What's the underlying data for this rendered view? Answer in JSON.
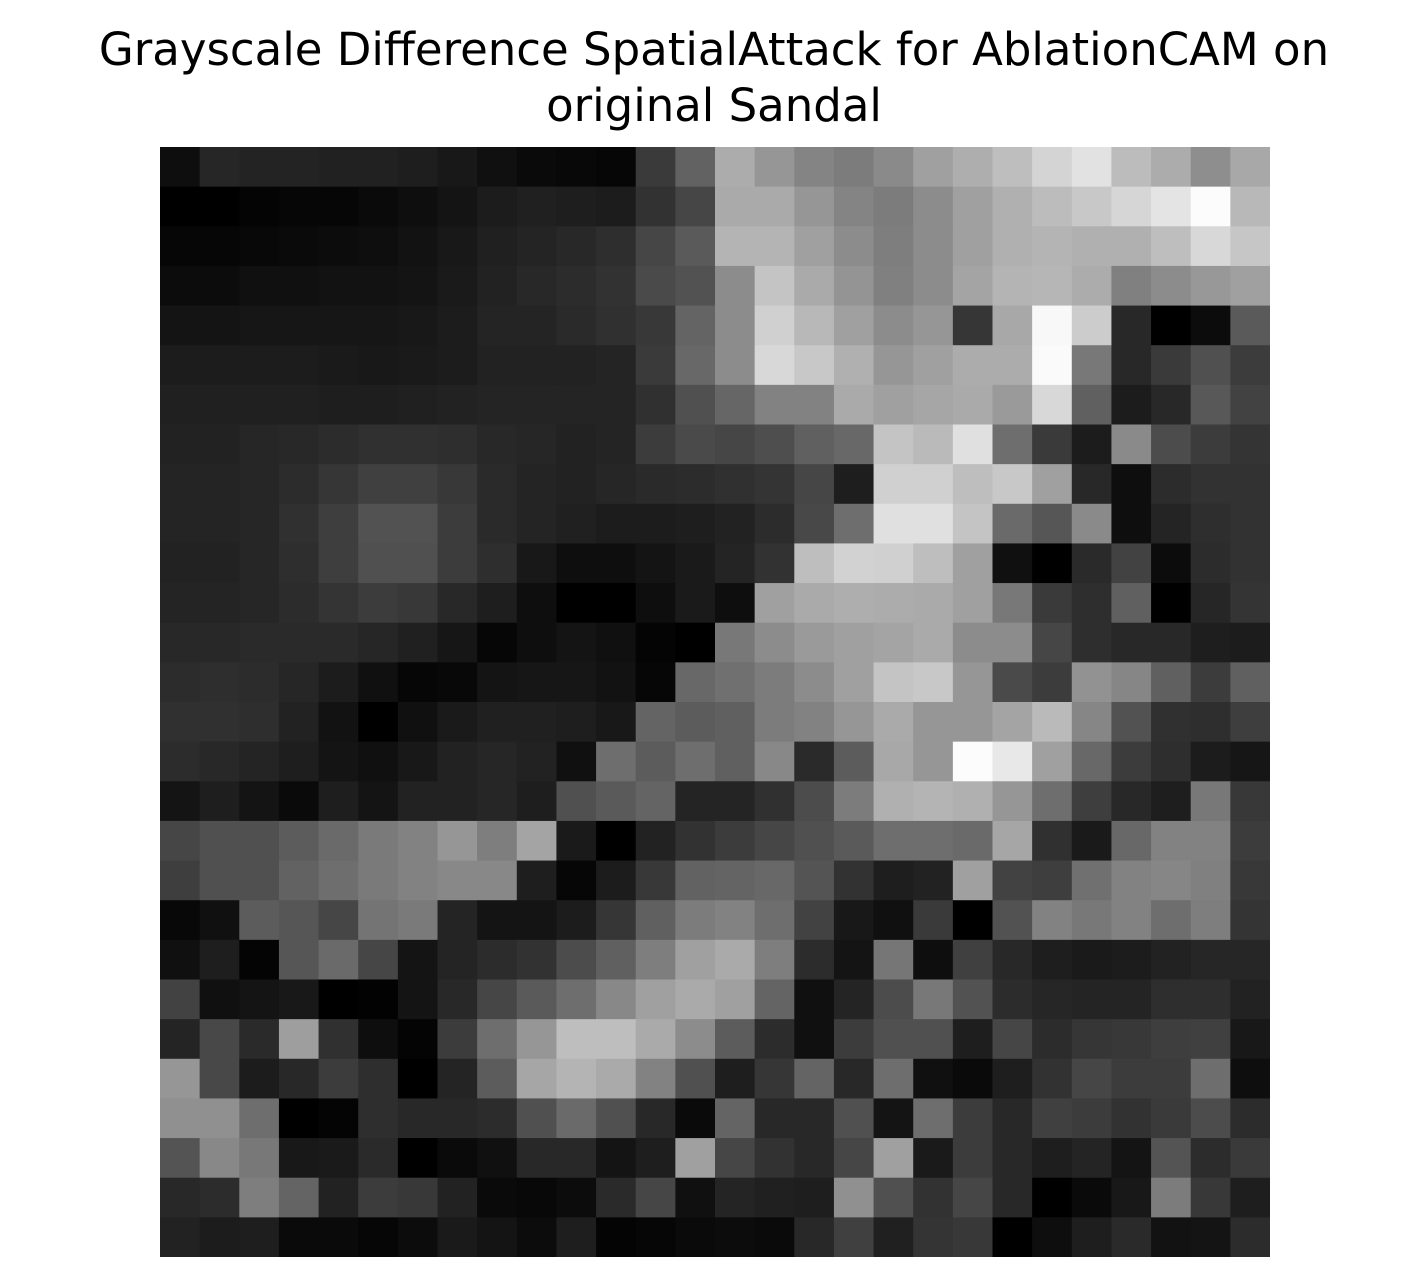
{
  "title_lines": [
    "Grayscale Difference SpatialAttack for AblationCAM on",
    "original Sandal"
  ],
  "chart_data": {
    "type": "heatmap",
    "colormap": "gray",
    "value_range": [
      0,
      255
    ],
    "axes_visible": false,
    "grid": false,
    "rows": 28,
    "cols": 28,
    "values": [
      [
        14,
        38,
        35,
        35,
        33,
        33,
        30,
        24,
        16,
        10,
        8,
        6,
        58,
        98,
        172,
        150,
        132,
        124,
        138,
        160,
        174,
        190,
        212,
        226,
        188,
        172,
        142,
        168
      ],
      [
        0,
        0,
        4,
        6,
        6,
        10,
        14,
        20,
        28,
        32,
        30,
        28,
        50,
        70,
        170,
        170,
        150,
        132,
        124,
        140,
        160,
        176,
        188,
        200,
        214,
        228,
        252,
        184
      ],
      [
        6,
        6,
        8,
        10,
        12,
        14,
        18,
        24,
        32,
        36,
        40,
        46,
        70,
        90,
        180,
        180,
        160,
        140,
        126,
        140,
        160,
        176,
        180,
        176,
        176,
        190,
        216,
        198
      ],
      [
        12,
        12,
        16,
        16,
        18,
        18,
        20,
        26,
        34,
        40,
        44,
        50,
        74,
        82,
        140,
        196,
        170,
        148,
        128,
        140,
        164,
        180,
        182,
        172,
        128,
        140,
        152,
        160
      ],
      [
        20,
        20,
        22,
        22,
        22,
        22,
        24,
        28,
        36,
        36,
        42,
        48,
        56,
        100,
        140,
        208,
        184,
        160,
        140,
        150,
        54,
        168,
        248,
        204,
        40,
        0,
        12,
        90
      ],
      [
        28,
        28,
        28,
        28,
        26,
        24,
        26,
        28,
        34,
        34,
        34,
        36,
        58,
        104,
        140,
        216,
        200,
        176,
        150,
        160,
        172,
        172,
        250,
        120,
        40,
        58,
        80,
        60
      ],
      [
        32,
        32,
        32,
        32,
        30,
        30,
        32,
        34,
        36,
        36,
        36,
        36,
        48,
        80,
        102,
        130,
        130,
        170,
        160,
        166,
        170,
        154,
        216,
        96,
        28,
        40,
        88,
        66
      ],
      [
        34,
        34,
        38,
        40,
        44,
        48,
        48,
        46,
        40,
        38,
        34,
        36,
        60,
        74,
        70,
        78,
        96,
        104,
        196,
        186,
        224,
        110,
        58,
        28,
        138,
        76,
        60,
        52
      ],
      [
        36,
        36,
        38,
        44,
        54,
        64,
        64,
        56,
        42,
        36,
        34,
        38,
        42,
        44,
        48,
        52,
        70,
        30,
        208,
        208,
        190,
        200,
        160,
        40,
        14,
        44,
        50,
        50
      ],
      [
        36,
        36,
        38,
        48,
        62,
        82,
        82,
        60,
        42,
        36,
        32,
        28,
        28,
        30,
        34,
        44,
        72,
        110,
        224,
        224,
        196,
        106,
        86,
        138,
        14,
        36,
        46,
        50
      ],
      [
        34,
        34,
        38,
        46,
        62,
        80,
        80,
        60,
        46,
        24,
        14,
        14,
        20,
        26,
        36,
        50,
        190,
        210,
        208,
        190,
        160,
        16,
        0,
        42,
        66,
        12,
        44,
        50
      ],
      [
        36,
        36,
        38,
        44,
        52,
        60,
        56,
        40,
        30,
        14,
        0,
        0,
        14,
        26,
        14,
        160,
        170,
        174,
        172,
        170,
        160,
        120,
        58,
        46,
        96,
        0,
        38,
        52
      ],
      [
        40,
        40,
        42,
        42,
        42,
        38,
        32,
        22,
        6,
        14,
        20,
        16,
        4,
        0,
        120,
        140,
        154,
        160,
        164,
        170,
        140,
        140,
        70,
        46,
        40,
        40,
        30,
        28
      ],
      [
        44,
        46,
        44,
        38,
        28,
        16,
        6,
        8,
        20,
        22,
        22,
        18,
        6,
        104,
        112,
        124,
        140,
        160,
        196,
        200,
        150,
        74,
        60,
        146,
        134,
        96,
        60,
        96
      ],
      [
        48,
        48,
        46,
        34,
        18,
        0,
        16,
        26,
        32,
        32,
        30,
        24,
        100,
        92,
        96,
        124,
        130,
        150,
        170,
        150,
        150,
        164,
        186,
        134,
        82,
        48,
        46,
        62
      ],
      [
        44,
        40,
        36,
        30,
        20,
        16,
        24,
        34,
        38,
        34,
        16,
        110,
        92,
        110,
        96,
        136,
        42,
        92,
        168,
        150,
        252,
        232,
        160,
        104,
        60,
        46,
        28,
        22
      ],
      [
        20,
        30,
        20,
        10,
        30,
        20,
        34,
        34,
        38,
        30,
        80,
        90,
        100,
        36,
        36,
        48,
        76,
        124,
        176,
        180,
        176,
        150,
        110,
        62,
        40,
        30,
        120,
        56
      ],
      [
        70,
        80,
        80,
        92,
        106,
        122,
        130,
        150,
        126,
        164,
        26,
        0,
        34,
        50,
        60,
        70,
        80,
        90,
        110,
        110,
        106,
        166,
        48,
        26,
        104,
        130,
        130,
        60
      ],
      [
        62,
        80,
        80,
        98,
        110,
        122,
        130,
        136,
        136,
        30,
        6,
        28,
        56,
        98,
        100,
        104,
        84,
        50,
        30,
        34,
        160,
        66,
        62,
        112,
        130,
        134,
        128,
        56
      ],
      [
        8,
        16,
        92,
        86,
        70,
        116,
        122,
        36,
        20,
        20,
        28,
        54,
        96,
        124,
        130,
        110,
        66,
        24,
        16,
        58,
        0,
        82,
        130,
        120,
        130,
        110,
        126,
        52
      ],
      [
        16,
        30,
        4,
        86,
        106,
        70,
        20,
        36,
        44,
        50,
        76,
        96,
        126,
        160,
        170,
        126,
        44,
        20,
        118,
        14,
        64,
        40,
        30,
        26,
        28,
        34,
        38,
        38
      ],
      [
        66,
        16,
        20,
        24,
        0,
        2,
        20,
        40,
        70,
        90,
        110,
        136,
        160,
        170,
        160,
        100,
        16,
        36,
        76,
        120,
        82,
        44,
        38,
        36,
        36,
        46,
        46,
        34
      ],
      [
        36,
        72,
        42,
        158,
        48,
        14,
        4,
        60,
        110,
        150,
        190,
        190,
        170,
        140,
        92,
        44,
        16,
        60,
        80,
        80,
        30,
        70,
        44,
        54,
        56,
        62,
        64,
        24
      ],
      [
        150,
        72,
        28,
        40,
        60,
        46,
        0,
        36,
        92,
        166,
        180,
        170,
        130,
        80,
        30,
        54,
        100,
        40,
        110,
        16,
        10,
        30,
        50,
        70,
        60,
        60,
        110,
        14
      ],
      [
        144,
        144,
        110,
        0,
        4,
        46,
        40,
        40,
        44,
        80,
        106,
        80,
        40,
        10,
        100,
        40,
        40,
        80,
        20,
        110,
        60,
        40,
        64,
        60,
        50,
        58,
        76,
        44
      ],
      [
        84,
        136,
        120,
        24,
        26,
        42,
        0,
        10,
        16,
        40,
        40,
        20,
        30,
        160,
        70,
        50,
        40,
        70,
        160,
        26,
        60,
        40,
        30,
        36,
        20,
        84,
        44,
        58
      ],
      [
        40,
        44,
        126,
        100,
        34,
        60,
        56,
        34,
        10,
        8,
        12,
        42,
        70,
        16,
        36,
        32,
        30,
        144,
        80,
        50,
        70,
        40,
        0,
        10,
        24,
        124,
        56,
        30
      ],
      [
        34,
        28,
        30,
        10,
        10,
        6,
        12,
        26,
        20,
        12,
        30,
        4,
        6,
        10,
        12,
        10,
        40,
        64,
        32,
        52,
        56,
        0,
        14,
        30,
        42,
        18,
        20,
        44
      ]
    ]
  }
}
